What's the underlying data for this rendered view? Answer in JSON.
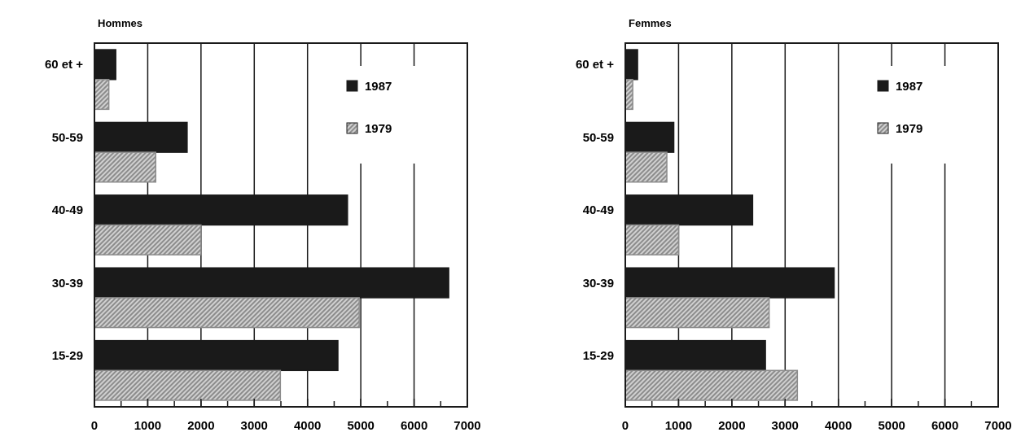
{
  "chart_data": [
    {
      "type": "bar",
      "title": "Hommes",
      "orientation": "horizontal",
      "categories": [
        "60 et +",
        "50-59",
        "40-49",
        "30-39",
        "15-29"
      ],
      "series": [
        {
          "name": "1987",
          "color": "#1a1a1a",
          "values": [
            400,
            1740,
            4750,
            6650,
            4570
          ]
        },
        {
          "name": "1979",
          "color": "#8c8c8c",
          "values": [
            270,
            1150,
            2000,
            4970,
            3490
          ]
        }
      ],
      "xlim": [
        0,
        7000
      ],
      "xticks": [
        0,
        {
          "value": 500,
          "label": null
        },
        1000,
        {
          "value": 1500,
          "label": null
        },
        2000,
        {
          "value": 2500,
          "label": null
        },
        3000,
        {
          "value": 3500,
          "label": null
        },
        4000,
        {
          "value": 4500,
          "label": null
        },
        5000,
        {
          "value": 5500,
          "label": null
        },
        6000,
        {
          "value": 6500,
          "label": null
        },
        7000
      ],
      "grid": "x",
      "legend": "top right"
    },
    {
      "type": "bar",
      "title": "Femmes",
      "orientation": "horizontal",
      "categories": [
        "60 et +",
        "50-59",
        "40-49",
        "30-39",
        "15-29"
      ],
      "series": [
        {
          "name": "1987",
          "color": "#1a1a1a",
          "values": [
            230,
            910,
            2390,
            3920,
            2630
          ]
        },
        {
          "name": "1979",
          "color": "#8c8c8c",
          "values": [
            140,
            780,
            1000,
            2700,
            3230
          ]
        }
      ],
      "xlim": [
        0,
        7000
      ],
      "xticks": [
        0,
        {
          "value": 500,
          "label": null
        },
        1000,
        {
          "value": 1500,
          "label": null
        },
        2000,
        {
          "value": 2500,
          "label": null
        },
        3000,
        {
          "value": 3500,
          "label": null
        },
        4000,
        {
          "value": 4500,
          "label": null
        },
        5000,
        {
          "value": 5500,
          "label": null
        },
        6000,
        {
          "value": 6500,
          "label": null
        },
        7000
      ],
      "grid": "x",
      "legend": "top right"
    }
  ]
}
